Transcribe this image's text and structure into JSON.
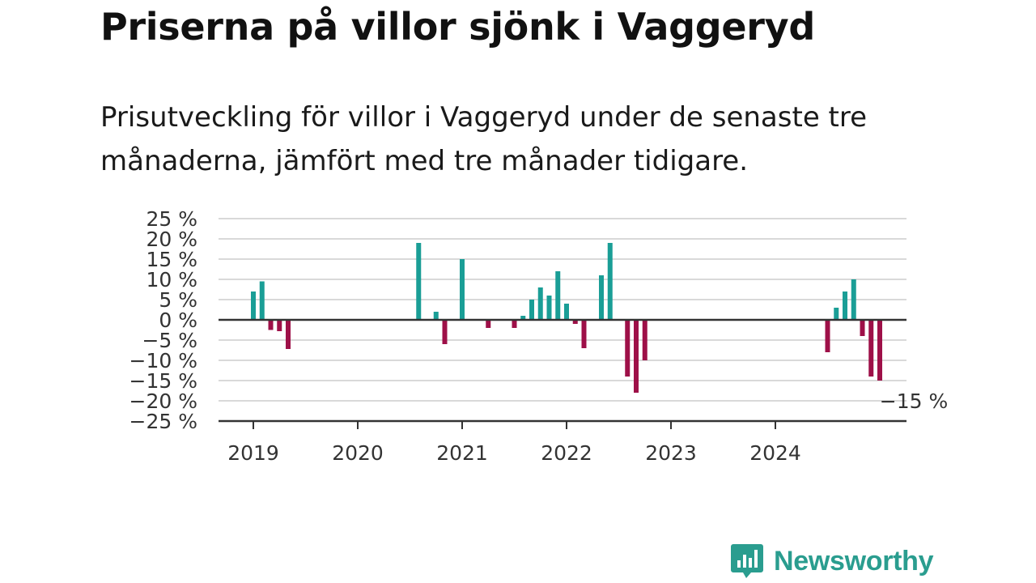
{
  "title": "Priserna på villor sjönk i Vaggeryd",
  "subtitle": "Prisutveckling för villor i Vaggeryd under de senaste tre månaderna, jämfört med tre månader tidigare.",
  "brand": {
    "name": "Newsworthy",
    "icon": "newsworthy-logo-icon"
  },
  "colors": {
    "positive": "#1a9e96",
    "negative": "#9e1048",
    "grid": "#d9d9d9",
    "axis": "#333333"
  },
  "chart_data": {
    "type": "bar",
    "title": "Priserna på villor sjönk i Vaggeryd",
    "subtitle": "Prisutveckling för villor i Vaggeryd under de senaste tre månaderna, jämfört med tre månader tidigare.",
    "x_axis": {
      "start": "2018-10",
      "end": "2025-03",
      "ticks": [
        "2019",
        "2020",
        "2021",
        "2022",
        "2023",
        "2024"
      ]
    },
    "y_axis": {
      "min": -25,
      "max": 25,
      "step": 5,
      "unit": "%",
      "tick_labels": [
        "25 %",
        "20 %",
        "15 %",
        "10 %",
        "5 %",
        "0 %",
        "−5 %",
        "−10 %",
        "−15 %",
        "−20 %",
        "−25 %"
      ]
    },
    "grid": true,
    "series": [
      {
        "points": [
          {
            "month": "2019-01",
            "value": 7
          },
          {
            "month": "2019-02",
            "value": 9.5
          },
          {
            "month": "2019-03",
            "value": -2.5
          },
          {
            "month": "2019-04",
            "value": -2.8
          },
          {
            "month": "2019-05",
            "value": -7.2
          },
          {
            "month": "2020-08",
            "value": 19
          },
          {
            "month": "2020-10",
            "value": 2
          },
          {
            "month": "2020-11",
            "value": -6
          },
          {
            "month": "2021-01",
            "value": 15
          },
          {
            "month": "2021-04",
            "value": -2
          },
          {
            "month": "2021-07",
            "value": -2
          },
          {
            "month": "2021-08",
            "value": 1
          },
          {
            "month": "2021-09",
            "value": 5
          },
          {
            "month": "2021-10",
            "value": 8
          },
          {
            "month": "2021-11",
            "value": 6
          },
          {
            "month": "2021-12",
            "value": 12
          },
          {
            "month": "2022-01",
            "value": 4
          },
          {
            "month": "2022-02",
            "value": -1
          },
          {
            "month": "2022-03",
            "value": -7
          },
          {
            "month": "2022-05",
            "value": 11
          },
          {
            "month": "2022-06",
            "value": 19
          },
          {
            "month": "2022-08",
            "value": -14
          },
          {
            "month": "2022-09",
            "value": -18
          },
          {
            "month": "2022-10",
            "value": -10
          },
          {
            "month": "2024-07",
            "value": -8
          },
          {
            "month": "2024-08",
            "value": 3
          },
          {
            "month": "2024-09",
            "value": 7
          },
          {
            "month": "2024-10",
            "value": 10
          },
          {
            "month": "2024-11",
            "value": -4
          },
          {
            "month": "2024-12",
            "value": -14
          },
          {
            "month": "2025-01",
            "value": -15
          }
        ]
      }
    ],
    "annotations": [
      {
        "month": "2025-01",
        "text": "−15 %"
      }
    ]
  }
}
